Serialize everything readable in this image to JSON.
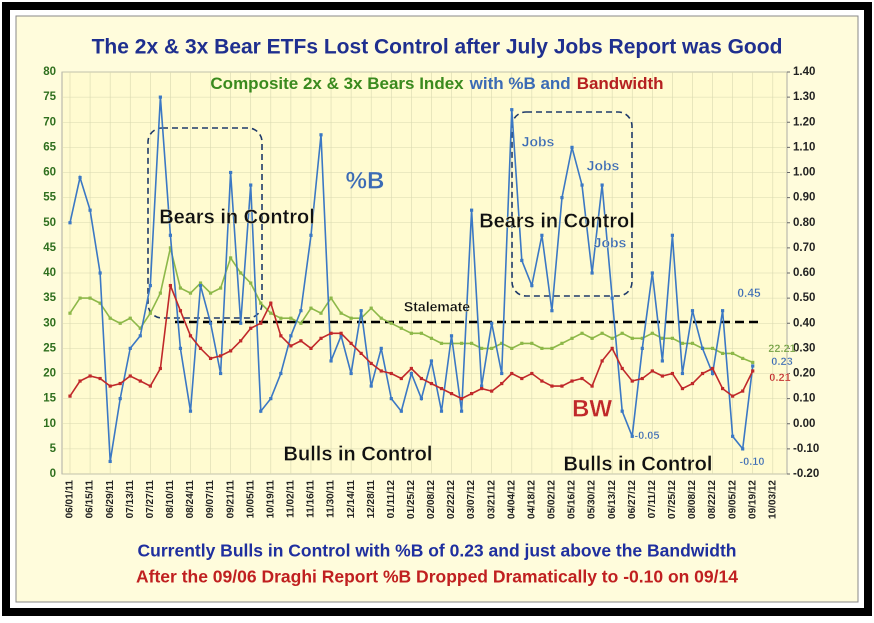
{
  "chart_data": {
    "type": "line",
    "title": "The 2x & 3x Bear ETFs Lost Control after July Jobs Report was Good",
    "subtitle": [
      {
        "text": "Composite 2x & 3x Bears Index",
        "color": "#3a8a1e"
      },
      {
        "text": "with %B and",
        "color": "#3b6bb5"
      },
      {
        "text": "Bandwidth",
        "color": "#b52020"
      }
    ],
    "footer": [
      {
        "text": "Currently Bulls in Control with %B of 0.23 and just above the Bandwidth",
        "color": "#1f2f9f"
      },
      {
        "text": "After the 09/06 Draghi Report %B Dropped Dramatically to -0.10 on 09/14",
        "color": "#c02020"
      }
    ],
    "categories": [
      "06/01/11",
      null,
      "06/15/11",
      null,
      "06/29/11",
      null,
      "07/13/11",
      null,
      "07/27/11",
      null,
      "08/10/11",
      null,
      "08/24/11",
      null,
      "09/07/11",
      null,
      "09/21/11",
      null,
      "10/05/11",
      null,
      "10/19/11",
      null,
      "11/02/11",
      null,
      "11/16/11",
      null,
      "11/30/11",
      null,
      "12/14/11",
      null,
      "12/28/11",
      null,
      "01/11/12",
      null,
      "01/25/12",
      null,
      "02/08/12",
      null,
      "02/22/12",
      null,
      "03/07/12",
      null,
      "03/21/12",
      null,
      "04/04/12",
      null,
      "04/18/12",
      null,
      "05/02/12",
      null,
      "05/16/12",
      null,
      "05/30/12",
      null,
      "06/13/12",
      null,
      "06/27/12",
      null,
      "07/11/12",
      null,
      "07/25/12",
      null,
      "08/08/12",
      null,
      "08/22/12",
      null,
      "09/05/12",
      null,
      "09/19/12",
      null,
      "10/03/12"
    ],
    "series": [
      {
        "name": "Composite 2x & 3x Bears Index",
        "color": "#8db849",
        "axis": "y",
        "values": [
          32,
          35,
          35,
          34,
          31,
          30,
          31,
          29,
          32,
          36,
          45,
          37,
          36,
          38,
          36,
          37,
          43,
          40,
          38,
          34,
          32,
          31,
          31,
          30,
          33,
          32,
          35,
          32,
          31,
          31,
          33,
          31,
          30,
          29,
          28,
          28,
          27,
          26,
          26,
          26,
          26,
          25,
          25,
          26,
          25,
          26,
          26,
          25,
          25,
          26,
          27,
          28,
          27,
          28,
          27,
          28,
          27,
          27,
          28,
          27,
          27,
          26,
          26,
          25,
          25,
          24,
          24,
          23,
          22.2,
          null,
          null
        ]
      },
      {
        "name": "%B",
        "color": "#3b78c4",
        "axis": "y2",
        "values": [
          0.8,
          0.98,
          0.85,
          0.6,
          -0.15,
          0.1,
          0.3,
          0.35,
          0.55,
          1.3,
          0.75,
          0.3,
          0.05,
          0.55,
          0.4,
          0.2,
          1.0,
          0.4,
          0.95,
          0.05,
          0.1,
          0.2,
          0.35,
          0.45,
          0.75,
          1.15,
          0.25,
          0.35,
          0.2,
          0.45,
          0.15,
          0.3,
          0.1,
          0.05,
          0.2,
          0.1,
          0.25,
          0.05,
          0.35,
          0.05,
          0.85,
          0.15,
          0.4,
          0.2,
          1.25,
          0.65,
          0.55,
          0.75,
          0.45,
          0.9,
          1.1,
          0.95,
          0.6,
          0.95,
          0.5,
          0.05,
          -0.05,
          0.3,
          0.6,
          0.25,
          0.75,
          0.2,
          0.45,
          0.3,
          0.2,
          0.45,
          -0.05,
          -0.1,
          0.23,
          null,
          null
        ]
      },
      {
        "name": "Bandwidth",
        "color": "#c0282a",
        "axis": "y2",
        "values": [
          0.11,
          0.17,
          0.19,
          0.18,
          0.15,
          0.16,
          0.19,
          0.17,
          0.15,
          0.22,
          0.55,
          0.45,
          0.35,
          0.3,
          0.26,
          0.27,
          0.29,
          0.33,
          0.38,
          0.4,
          0.48,
          0.35,
          0.31,
          0.33,
          0.3,
          0.34,
          0.36,
          0.36,
          0.32,
          0.28,
          0.24,
          0.21,
          0.2,
          0.18,
          0.22,
          0.18,
          0.16,
          0.14,
          0.12,
          0.1,
          0.12,
          0.14,
          0.13,
          0.16,
          0.2,
          0.18,
          0.2,
          0.17,
          0.15,
          0.15,
          0.17,
          0.18,
          0.15,
          0.25,
          0.3,
          0.22,
          0.17,
          0.18,
          0.21,
          0.19,
          0.2,
          0.14,
          0.16,
          0.2,
          0.22,
          0.14,
          0.11,
          0.13,
          0.21,
          null,
          null
        ]
      }
    ],
    "ylim": [
      0,
      80
    ],
    "yticks": [
      0,
      5,
      10,
      15,
      20,
      25,
      30,
      35,
      40,
      45,
      50,
      55,
      60,
      65,
      70,
      75,
      80
    ],
    "y2lim": [
      -0.2,
      1.4
    ],
    "y2ticks": [
      {
        "value": -0.2,
        "label": "-0.20"
      },
      {
        "value": -0.1,
        "label": "-0.10"
      },
      {
        "value": 0,
        "label": "0.00"
      },
      {
        "value": 0.1,
        "label": "0.10"
      },
      {
        "value": 0.2,
        "label": "0.20"
      },
      {
        "value": 0.3,
        "label": "0.30"
      },
      {
        "value": 0.4,
        "label": "0.40"
      },
      {
        "value": 0.5,
        "label": "0.50"
      },
      {
        "value": 0.6,
        "label": "0.60"
      },
      {
        "value": 0.7,
        "label": "0.70"
      },
      {
        "value": 0.8,
        "label": "0.80"
      },
      {
        "value": 0.9,
        "label": "0.90"
      },
      {
        "value": 1.0,
        "label": "1.00"
      },
      {
        "value": 1.1,
        "label": "1.10"
      },
      {
        "value": 1.2,
        "label": "1.20"
      },
      {
        "value": 1.3,
        "label": "1.30"
      },
      {
        "value": 1.4,
        "label": "1.40"
      }
    ],
    "grid": true,
    "annotations": [
      {
        "text": "%B",
        "color": "#3b6bb5"
      },
      {
        "text": "Bears in Control",
        "color": "#111111"
      },
      {
        "text": "Bears in Control",
        "color": "#111111"
      },
      {
        "text": "Jobs",
        "color": "#3b6bb5"
      },
      {
        "text": "Jobs",
        "color": "#3b6bb5"
      },
      {
        "text": "Jobs",
        "color": "#3b6bb5"
      },
      {
        "text": "Stalemate",
        "color": "#111111"
      },
      {
        "text": "Bulls in Control",
        "color": "#111111"
      },
      {
        "text": "Bulls in Control",
        "color": "#111111"
      },
      {
        "text": "BW",
        "color": "#c0282a"
      },
      {
        "text": "0.45",
        "color": "#3b6bb5"
      },
      {
        "text": "22.21",
        "color": "#6a9a3a"
      },
      {
        "text": "0.23",
        "color": "#3b6bb5"
      },
      {
        "text": "0.21",
        "color": "#c0282a"
      },
      {
        "text": "-0.05",
        "color": "#3b6bb5"
      },
      {
        "text": "-0.10",
        "color": "#3b6bb5"
      }
    ]
  }
}
